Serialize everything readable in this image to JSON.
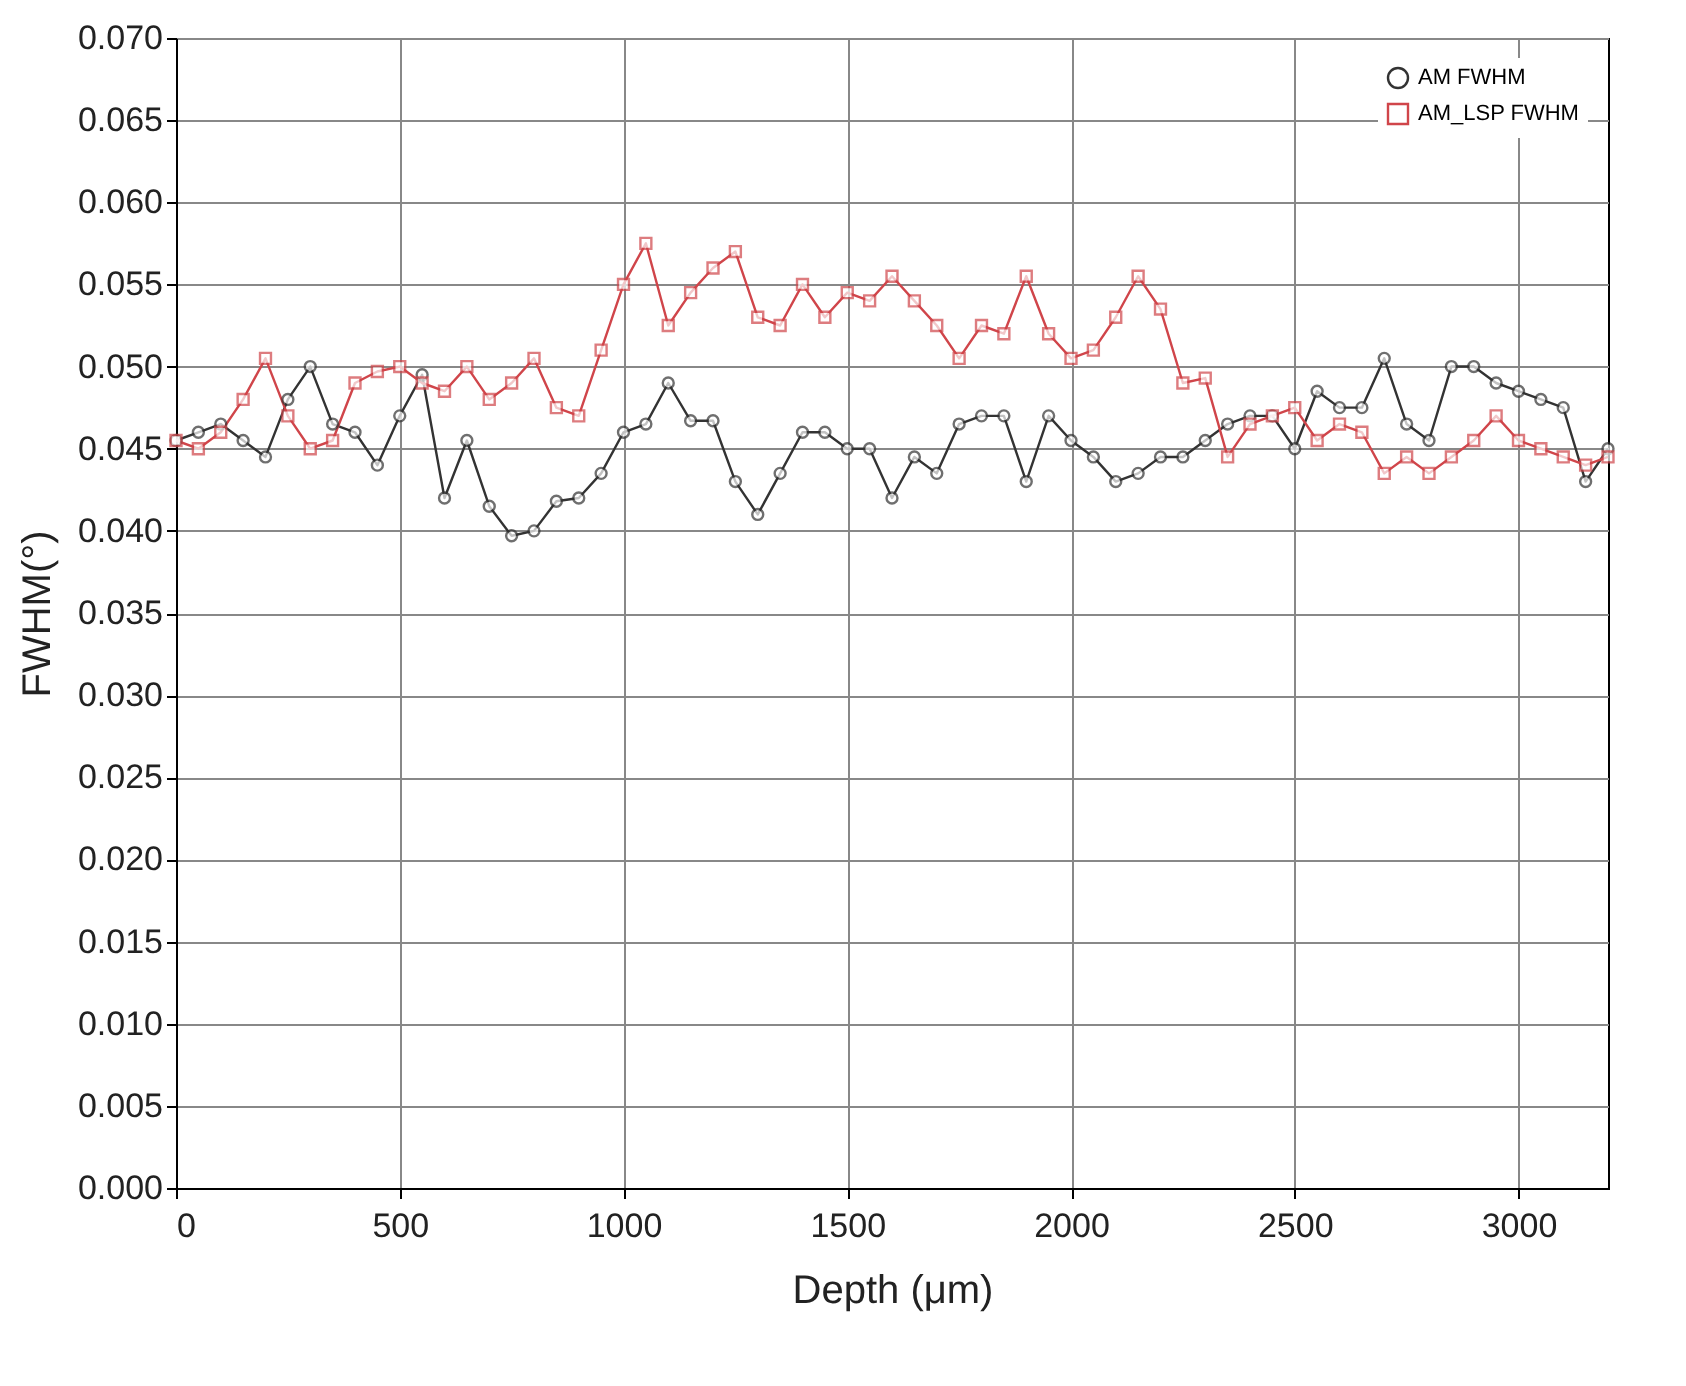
{
  "chart_data": {
    "type": "line",
    "xlabel": "Depth (μm)",
    "ylabel": "FWHM(°)",
    "x": [
      0,
      50,
      100,
      150,
      200,
      250,
      300,
      350,
      400,
      450,
      500,
      550,
      600,
      650,
      700,
      750,
      800,
      850,
      900,
      950,
      1000,
      1050,
      1100,
      1150,
      1200,
      1250,
      1300,
      1350,
      1400,
      1450,
      1500,
      1550,
      1600,
      1650,
      1700,
      1750,
      1800,
      1850,
      1900,
      1950,
      2000,
      2050,
      2100,
      2150,
      2200,
      2250,
      2300,
      2350,
      2400,
      2450,
      2500,
      2550,
      2600,
      2650,
      2700,
      2750,
      2800,
      2850,
      2900,
      2950,
      3000,
      3050,
      3100,
      3150,
      3200
    ],
    "series": [
      {
        "name": "AM FWHM",
        "color": "#333333",
        "marker": "circle",
        "values": [
          0.0455,
          0.046,
          0.0465,
          0.0455,
          0.0445,
          0.048,
          0.05,
          0.0465,
          0.046,
          0.044,
          0.047,
          0.0495,
          0.042,
          0.0455,
          0.0415,
          0.0397,
          0.04,
          0.0418,
          0.042,
          0.0435,
          0.046,
          0.0465,
          0.049,
          0.0467,
          0.0467,
          0.043,
          0.041,
          0.0435,
          0.046,
          0.046,
          0.045,
          0.045,
          0.042,
          0.0445,
          0.0435,
          0.0465,
          0.047,
          0.047,
          0.043,
          0.047,
          0.0455,
          0.0445,
          0.043,
          0.0435,
          0.0445,
          0.0445,
          0.0455,
          0.0465,
          0.047,
          0.047,
          0.045,
          0.0485,
          0.0475,
          0.0475,
          0.0505,
          0.0465,
          0.0455,
          0.05,
          0.05,
          0.049,
          0.0485,
          0.048,
          0.0475,
          0.043,
          0.045
        ]
      },
      {
        "name": "AM_LSP FWHM",
        "color": "#d0454a",
        "marker": "square",
        "values": [
          0.0455,
          0.045,
          0.046,
          0.048,
          0.0505,
          0.047,
          0.045,
          0.0455,
          0.049,
          0.0497,
          0.05,
          0.049,
          0.0485,
          0.05,
          0.048,
          0.049,
          0.0505,
          0.0475,
          0.047,
          0.051,
          0.055,
          0.0575,
          0.0525,
          0.0545,
          0.056,
          0.057,
          0.053,
          0.0525,
          0.055,
          0.053,
          0.0545,
          0.054,
          0.0555,
          0.054,
          0.0525,
          0.0505,
          0.0525,
          0.052,
          0.0555,
          0.052,
          0.0505,
          0.051,
          0.053,
          0.0555,
          0.0535,
          0.049,
          0.0493,
          0.0445,
          0.0465,
          0.047,
          0.0475,
          0.0455,
          0.0465,
          0.046,
          0.0435,
          0.0445,
          0.0435,
          0.0445,
          0.0455,
          0.047,
          0.0455,
          0.045,
          0.0445,
          0.044,
          0.0445
        ]
      }
    ],
    "xlim": [
      0,
      3200
    ],
    "xticks": [
      0,
      500,
      1000,
      1500,
      2000,
      2500,
      3000
    ],
    "ylim": [
      0,
      0.07
    ],
    "yticks": [
      {
        "value": 0,
        "label": "0.000"
      },
      {
        "value": 0.005,
        "label": "0.005"
      },
      {
        "value": 0.01,
        "label": "0.010"
      },
      {
        "value": 0.015,
        "label": "0.015"
      },
      {
        "value": 0.02,
        "label": "0.020"
      },
      {
        "value": 0.025,
        "label": "0.025"
      },
      {
        "value": 0.03,
        "label": "0.030"
      },
      {
        "value": 0.035,
        "label": "0.035"
      },
      {
        "value": 0.04,
        "label": "0.040"
      },
      {
        "value": 0.045,
        "label": "0.045"
      },
      {
        "value": 0.05,
        "label": "0.050"
      },
      {
        "value": 0.055,
        "label": "0.055"
      },
      {
        "value": 0.06,
        "label": "0.060"
      },
      {
        "value": 0.065,
        "label": "0.065"
      },
      {
        "value": 0.07,
        "label": "0.070"
      }
    ],
    "grid": true,
    "legend": "top right",
    "line_style": "solid"
  }
}
